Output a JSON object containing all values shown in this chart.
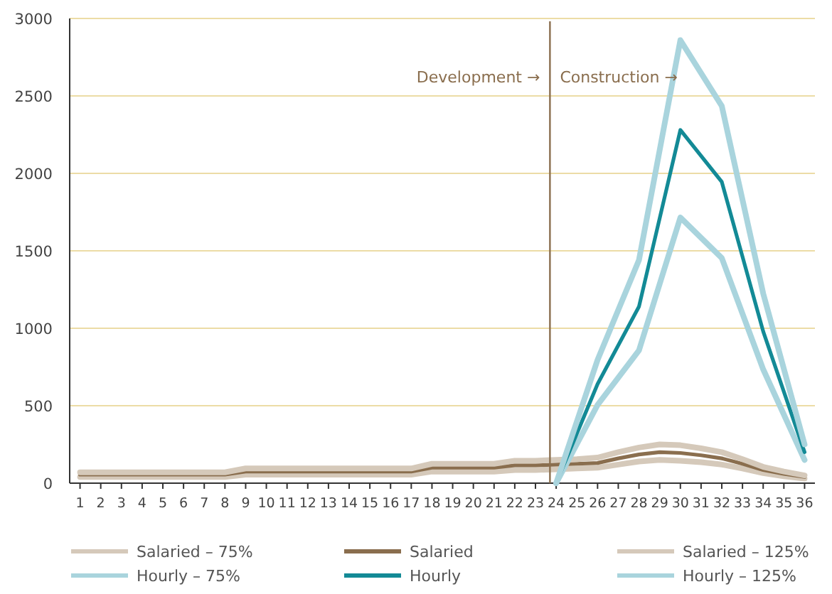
{
  "chart_data": {
    "type": "line",
    "x": [
      1,
      2,
      3,
      4,
      5,
      6,
      7,
      8,
      9,
      10,
      11,
      12,
      13,
      14,
      15,
      16,
      17,
      18,
      19,
      20,
      21,
      22,
      23,
      24,
      25,
      26,
      27,
      28,
      29,
      30,
      31,
      32,
      33,
      34,
      35,
      36
    ],
    "xlim": [
      0.5,
      36.5
    ],
    "xticks": [
      1,
      2,
      3,
      4,
      5,
      6,
      7,
      8,
      9,
      10,
      11,
      12,
      13,
      14,
      15,
      16,
      17,
      18,
      19,
      20,
      21,
      22,
      23,
      24,
      25,
      26,
      27,
      28,
      29,
      30,
      31,
      32,
      33,
      34,
      35,
      36
    ],
    "ylim": [
      0,
      3000
    ],
    "yticks": [
      0,
      500,
      1000,
      1500,
      2000,
      2500,
      3000
    ],
    "grid": "y",
    "legend": "bottom",
    "line_style": "solid",
    "marker": "none",
    "ref_lines": [
      {
        "axis": "x",
        "value": 23.7,
        "color": "#8a6e4e"
      }
    ],
    "annotations": [
      "Development →",
      "Construction →"
    ],
    "series": [
      {
        "name": "Salaried – 75%",
        "color": "#d5c9ba",
        "values": [
          40,
          40,
          40,
          40,
          40,
          40,
          40,
          40,
          55,
          55,
          55,
          55,
          55,
          55,
          55,
          55,
          55,
          75,
          75,
          75,
          75,
          85,
          85,
          90,
          95,
          100,
          120,
          140,
          150,
          145,
          135,
          120,
          95,
          65,
          45,
          30
        ]
      },
      {
        "name": "Salaried",
        "color": "#8a6e4e",
        "values": [
          55,
          55,
          55,
          55,
          55,
          55,
          55,
          55,
          75,
          75,
          75,
          75,
          75,
          75,
          75,
          75,
          75,
          100,
          100,
          100,
          100,
          115,
          115,
          120,
          125,
          130,
          160,
          185,
          200,
          195,
          180,
          160,
          125,
          85,
          60,
          40
        ]
      },
      {
        "name": "Salaried – 125%",
        "color": "#d5c9ba",
        "values": [
          70,
          70,
          70,
          70,
          70,
          70,
          70,
          70,
          95,
          95,
          95,
          95,
          95,
          95,
          95,
          95,
          95,
          125,
          125,
          125,
          125,
          145,
          145,
          150,
          155,
          165,
          200,
          230,
          250,
          245,
          225,
          200,
          155,
          105,
          75,
          50
        ]
      },
      {
        "name": "Hourly – 75%",
        "color": "#a9d4dd",
        "x": [
          24,
          26,
          28,
          30,
          32,
          34,
          36
        ],
        "values": [
          0,
          505,
          857,
          1715,
          1454,
          735,
          150
        ]
      },
      {
        "name": "Hourly",
        "color": "#138a96",
        "x": [
          24,
          26,
          28,
          30,
          32,
          34,
          36
        ],
        "values": [
          0,
          640,
          1140,
          2280,
          1945,
          980,
          200
        ]
      },
      {
        "name": "Hourly – 125%",
        "color": "#a9d4dd",
        "x": [
          24,
          26,
          28,
          30,
          32,
          34,
          36
        ],
        "values": [
          0,
          796,
          1440,
          2860,
          2435,
          1225,
          250
        ]
      }
    ]
  }
}
